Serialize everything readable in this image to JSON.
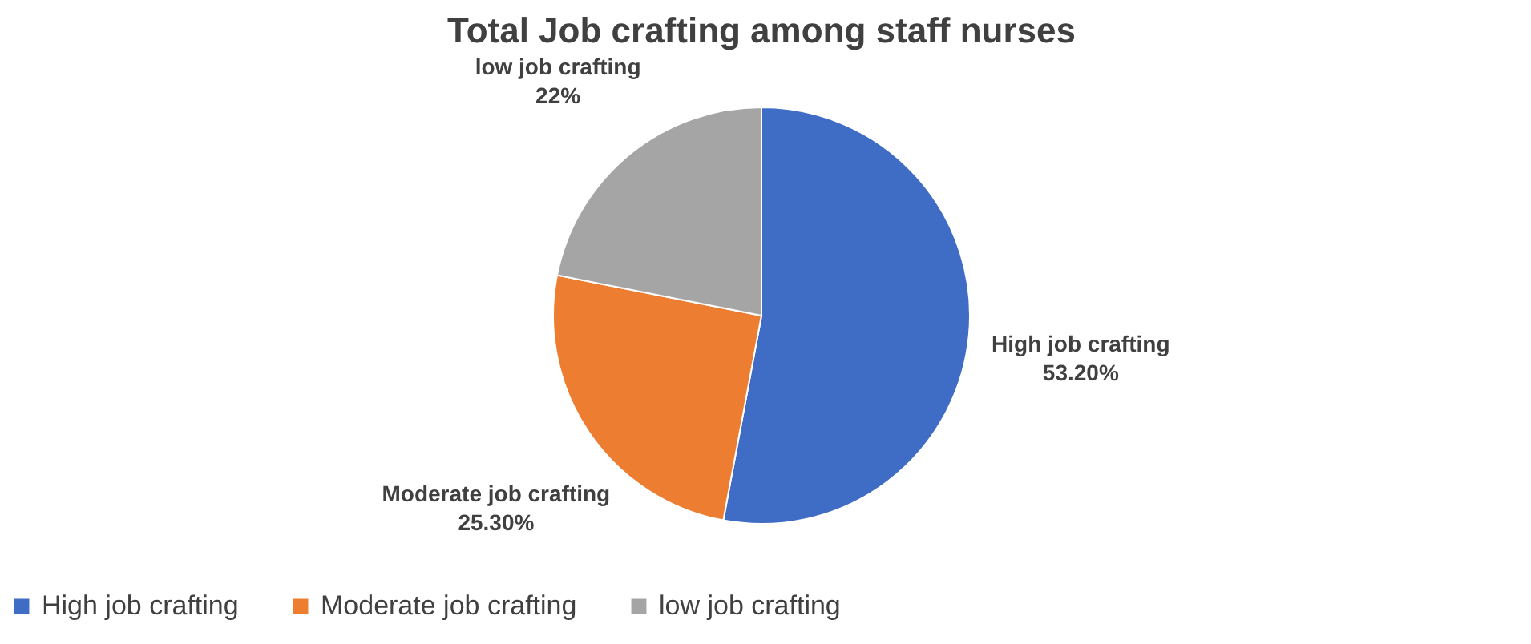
{
  "chart_data": {
    "type": "pie",
    "title": "Total Job crafting among staff nurses",
    "categories": [
      "High job crafting",
      "Moderate job crafting",
      "low job crafting"
    ],
    "values": [
      53.2,
      25.3,
      22
    ],
    "colors": [
      "#3f6cc4",
      "#ed7d31",
      "#a5a5a5"
    ],
    "value_labels": [
      "53.20%",
      "25.30%",
      "22%"
    ],
    "legend": "bottom"
  }
}
